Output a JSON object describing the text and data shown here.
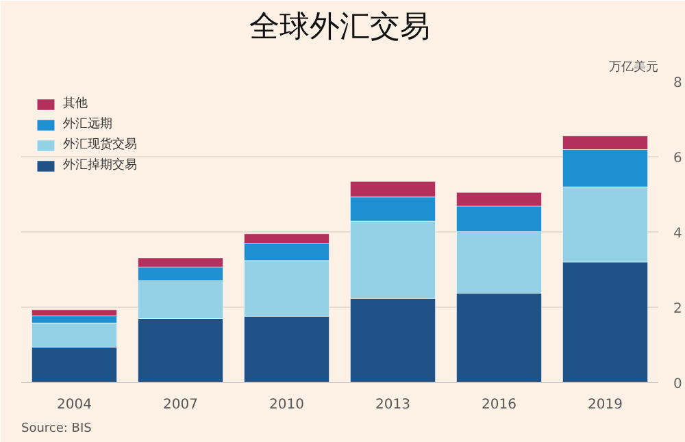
{
  "chart_data": {
    "type": "bar",
    "title": "全球外汇交易",
    "ylabel": "万亿美元",
    "stacked": true,
    "categories": [
      "2004",
      "2007",
      "2010",
      "2013",
      "2016",
      "2019"
    ],
    "series": [
      {
        "name": "外汇掉期交易",
        "color": "#1f5387",
        "values": [
          0.94,
          1.7,
          1.76,
          2.23,
          2.37,
          3.2
        ]
      },
      {
        "name": "外汇现货交易",
        "color": "#93d1e6",
        "values": [
          0.64,
          1.01,
          1.48,
          2.06,
          1.64,
          2.0
        ]
      },
      {
        "name": "外汇远期",
        "color": "#1e8fd0",
        "values": [
          0.19,
          0.36,
          0.46,
          0.64,
          0.68,
          0.99
        ]
      },
      {
        "name": "其他",
        "color": "#b3305c",
        "values": [
          0.16,
          0.24,
          0.25,
          0.41,
          0.36,
          0.36
        ]
      }
    ],
    "ylim": [
      0,
      8
    ],
    "yticks": [
      0,
      2,
      4,
      6,
      8
    ],
    "grid": "y",
    "legend": "top left",
    "annotations": [
      "Source: BIS"
    ]
  }
}
